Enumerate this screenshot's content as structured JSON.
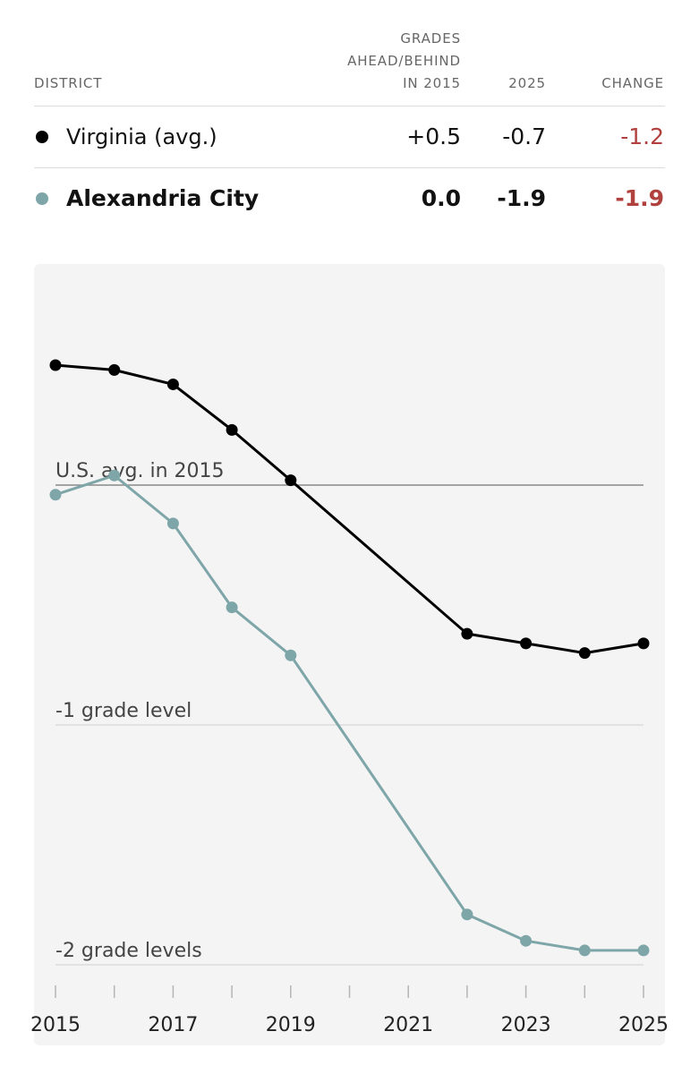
{
  "table": {
    "headers": {
      "district": "DISTRICT",
      "ahead_line1": "GRADES",
      "ahead_line2": "AHEAD/BEHIND",
      "ahead_line3": "IN 2015",
      "y2025": "2025",
      "change": "CHANGE"
    },
    "rows": [
      {
        "name": "Virginia (avg.)",
        "v2015": "+0.5",
        "v2025": "-0.7",
        "change": "-1.2",
        "color": "#000000",
        "change_color": "#b0413e",
        "bold": false
      },
      {
        "name": "Alexandria City",
        "v2015": "0.0",
        "v2025": "-1.9",
        "change": "-1.9",
        "color": "#7ea6a9",
        "change_color": "#b0413e",
        "bold": true
      }
    ]
  },
  "chart_data": {
    "type": "line",
    "x": [
      2015,
      2016,
      2017,
      2018,
      2019,
      2022,
      2023,
      2024,
      2025
    ],
    "series": [
      {
        "name": "Virginia (avg.)",
        "color": "#000000",
        "values": [
          0.5,
          0.48,
          0.42,
          0.23,
          0.02,
          -0.62,
          -0.66,
          -0.7,
          -0.66
        ]
      },
      {
        "name": "Alexandria City",
        "color": "#7ea6a9",
        "values": [
          -0.04,
          0.04,
          -0.16,
          -0.51,
          -0.71,
          -1.79,
          -1.9,
          -1.94,
          -1.94
        ]
      }
    ],
    "reference_lines": [
      {
        "value": 0,
        "label": "U.S. avg. in 2015",
        "color": "#8a8a8a"
      },
      {
        "value": -1,
        "label": "-1 grade level",
        "color": "#d6d6d6"
      },
      {
        "value": -2,
        "label": "-2 grade levels",
        "color": "#d6d6d6"
      }
    ],
    "x_ticks": [
      2015,
      2016,
      2017,
      2018,
      2019,
      2020,
      2021,
      2022,
      2023,
      2024,
      2025
    ],
    "x_tick_labels": [
      "2015",
      "2017",
      "2019",
      "2021",
      "2023",
      "2025"
    ],
    "xlim": [
      2015,
      2025
    ],
    "ylim": [
      -2.1,
      0.6
    ],
    "grid": false
  }
}
